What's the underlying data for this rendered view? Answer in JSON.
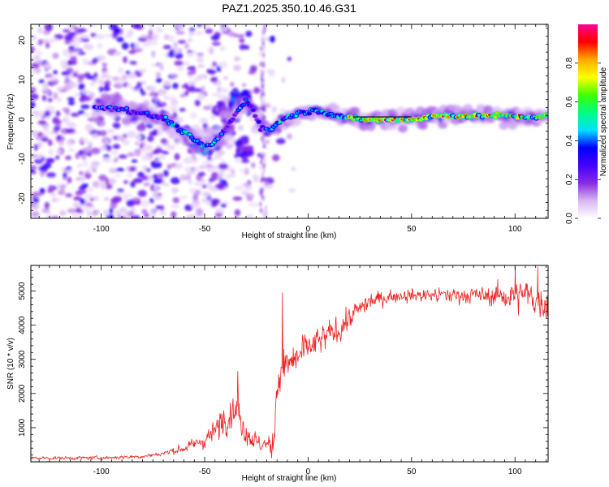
{
  "figure": {
    "title": "PAZ1.2025.350.10.46.G31"
  },
  "colors": {
    "snr_line": "#ee2222",
    "ridge_black": "#000000",
    "background": "#ffffff"
  },
  "chart_data": [
    {
      "type": "heatmap",
      "name": "spectrogram",
      "xlabel": "Height of straight line (km)",
      "ylabel": "Frequency (Hz)",
      "xlim": [
        -134,
        116
      ],
      "ylim": [
        -25,
        24
      ],
      "xticks": [
        -100,
        -50,
        0,
        50,
        100
      ],
      "yticks": [
        -20,
        -10,
        0,
        10,
        20
      ],
      "ridge": [
        [
          -103,
          3
        ],
        [
          -97,
          3
        ],
        [
          -92,
          2.8
        ],
        [
          -86,
          2.2
        ],
        [
          -80,
          1.5
        ],
        [
          -75,
          0.8
        ],
        [
          -70,
          0.5
        ],
        [
          -66,
          -1
        ],
        [
          -62,
          -2.5
        ],
        [
          -58,
          -4
        ],
        [
          -54,
          -5.5
        ],
        [
          -50,
          -7
        ],
        [
          -46,
          -6
        ],
        [
          -42,
          -4
        ],
        [
          -38,
          -1
        ],
        [
          -34,
          2
        ],
        [
          -30,
          5
        ],
        [
          -27,
          3
        ],
        [
          -23,
          -2
        ],
        [
          -19,
          -3
        ],
        [
          -15,
          -1
        ],
        [
          -10,
          0.5
        ],
        [
          -5,
          1.5
        ],
        [
          0,
          2
        ],
        [
          5,
          2.2
        ],
        [
          10,
          1.5
        ],
        [
          15,
          0.8
        ],
        [
          20,
          0.3
        ],
        [
          25,
          0
        ],
        [
          50,
          0
        ],
        [
          55,
          0.3
        ],
        [
          60,
          0.8
        ],
        [
          70,
          1
        ],
        [
          80,
          0.8
        ],
        [
          90,
          1
        ],
        [
          100,
          0.8
        ],
        [
          105,
          0.5
        ],
        [
          110,
          0.6
        ],
        [
          116,
          1
        ]
      ],
      "branches": [
        {
          "points": [
            [
              -60,
              -3
            ],
            [
              -55,
              -6
            ],
            [
              -51,
              -8
            ],
            [
              -48,
              -7
            ]
          ],
          "amplitude": 0.45
        },
        {
          "points": [
            [
              -38,
              4
            ],
            [
              -34,
              6
            ],
            [
              -31,
              5
            ],
            [
              -29,
              6
            ]
          ],
          "amplitude": 0.35
        },
        {
          "points": [
            [
              -45,
              2
            ],
            [
              -42,
              4
            ],
            [
              -40,
              0
            ],
            [
              -37,
              -3
            ]
          ],
          "amplitude": 0.25
        },
        {
          "points": [
            [
              -34,
              -7
            ],
            [
              -31,
              -9
            ],
            [
              -28,
              -8
            ]
          ],
          "amplitude": 0.3
        }
      ],
      "ridge_line_x": [
        22,
        50
      ],
      "colorbar": {
        "label": "Normalized spectral amplitude",
        "min": 0.0,
        "max": 1.0,
        "ticks": [
          0.0,
          0.2,
          0.4,
          0.6,
          0.8
        ],
        "tick_labels": [
          "0.0",
          "0.2",
          "0.4",
          "0.6",
          "0.8"
        ],
        "colormap": [
          "#ffffff",
          "#d8b6f4",
          "#8a2be2",
          "#4400ff",
          "#0000ff",
          "#00e0ff",
          "#00ff80",
          "#40ff00",
          "#ffff00",
          "#ffaa00",
          "#ff0000",
          "#ff0090"
        ]
      }
    },
    {
      "type": "line",
      "name": "snr",
      "xlabel": "Height of straight line (km)",
      "ylabel": "SNR (10 * v/v)",
      "xlim": [
        -134,
        116
      ],
      "ylim": [
        0,
        5750
      ],
      "xticks": [
        -100,
        -50,
        0,
        50,
        100
      ],
      "yticks": [
        1000,
        2000,
        3000,
        4000,
        5000
      ],
      "envelope": [
        [
          -134,
          110
        ],
        [
          -100,
          115
        ],
        [
          -80,
          160
        ],
        [
          -70,
          250
        ],
        [
          -60,
          400
        ],
        [
          -50,
          650
        ],
        [
          -45,
          900
        ],
        [
          -40,
          1250
        ],
        [
          -37,
          1450
        ],
        [
          -35,
          1400
        ],
        [
          -32,
          1100
        ],
        [
          -28,
          700
        ],
        [
          -25,
          550
        ],
        [
          -20,
          500
        ],
        [
          -17,
          450
        ],
        [
          -16,
          1700
        ],
        [
          -14,
          2600
        ],
        [
          -10,
          2800
        ],
        [
          -5,
          3100
        ],
        [
          0,
          3300
        ],
        [
          5,
          3500
        ],
        [
          10,
          3700
        ],
        [
          15,
          3900
        ],
        [
          20,
          4200
        ],
        [
          25,
          4500
        ],
        [
          30,
          4700
        ],
        [
          40,
          4850
        ],
        [
          50,
          4870
        ],
        [
          60,
          4880
        ],
        [
          70,
          4880
        ],
        [
          80,
          4880
        ],
        [
          90,
          4860
        ],
        [
          100,
          4840
        ],
        [
          105,
          4900
        ],
        [
          110,
          4750
        ],
        [
          116,
          4600
        ]
      ],
      "noise": [
        [
          -134,
          60
        ],
        [
          -75,
          80
        ],
        [
          -55,
          200
        ],
        [
          -40,
          600
        ],
        [
          -32,
          550
        ],
        [
          -20,
          280
        ],
        [
          -16,
          700
        ],
        [
          0,
          650
        ],
        [
          20,
          450
        ],
        [
          40,
          220
        ],
        [
          85,
          320
        ],
        [
          100,
          600
        ],
        [
          116,
          600
        ]
      ],
      "spikes": [
        [
          -12.5,
          4950
        ],
        [
          -11.8,
          3300
        ],
        [
          -34,
          2650
        ],
        [
          100,
          5720
        ],
        [
          111,
          5700
        ]
      ],
      "samples": 1100
    }
  ]
}
